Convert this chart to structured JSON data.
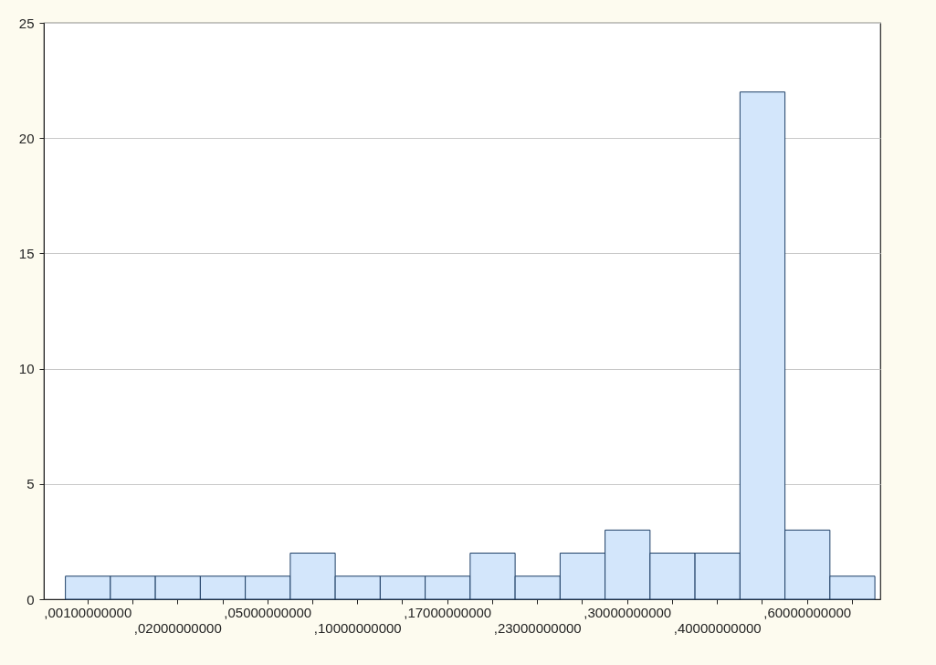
{
  "chart_data": {
    "type": "bar",
    "categories": [
      ",00100000000",
      null,
      ",02000000000",
      null,
      ",05000000000",
      null,
      ",10000000000",
      null,
      ",17000000000",
      null,
      ",23000000000",
      null,
      ",30000000000",
      null,
      ",40000000000",
      null,
      ",60000000000",
      null
    ],
    "values": [
      1,
      1,
      1,
      1,
      1,
      2,
      1,
      1,
      1,
      2,
      1,
      2,
      3,
      2,
      2,
      22,
      3,
      1
    ],
    "color": "#d3e6fb",
    "ylim": [
      0,
      25
    ],
    "yticks": [
      0,
      5,
      10,
      15,
      20,
      25
    ],
    "grid": "y"
  }
}
